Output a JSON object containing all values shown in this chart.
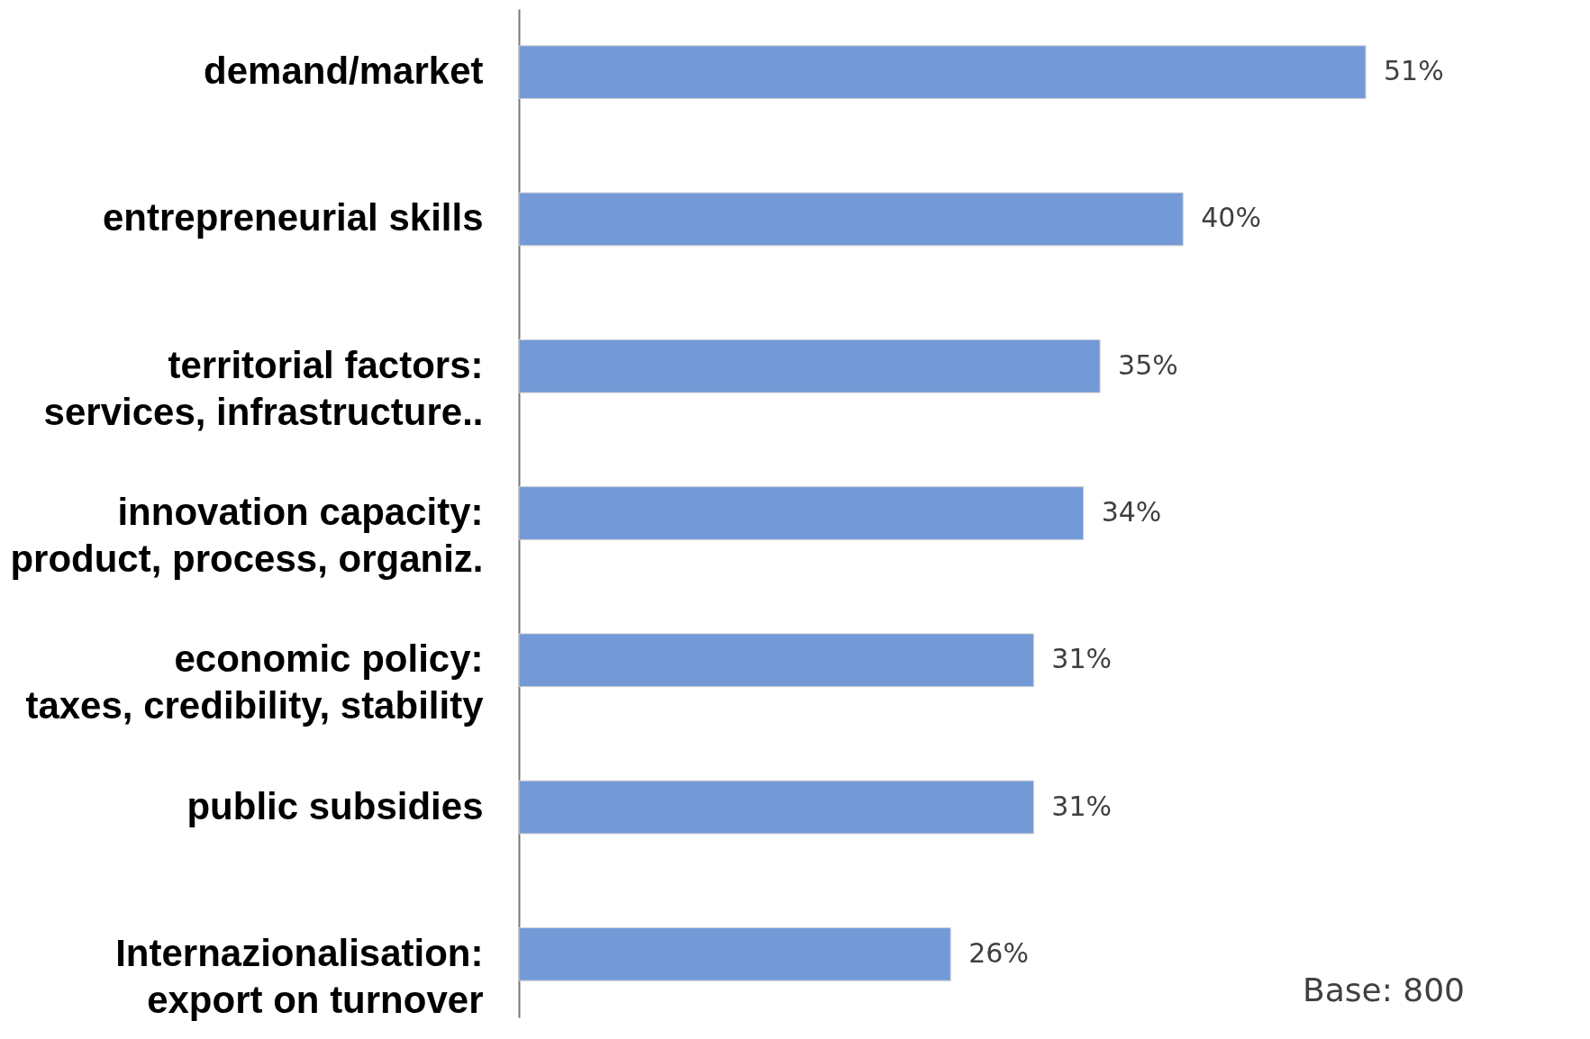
{
  "chart_data": {
    "type": "bar",
    "orientation": "horizontal",
    "categories": [
      "demand/market",
      "entrepreneurial skills",
      "territorial factors:\nservices, infrastructure..",
      "innovation capacity:\nproduct, process, organiz.",
      "economic policy:\ntaxes, credibility, stability",
      "public subsidies",
      "Internazionalisation:\nexport on turnover"
    ],
    "values": [
      51,
      40,
      35,
      34,
      31,
      31,
      26
    ],
    "value_labels": [
      "51%",
      "40%",
      "35%",
      "34%",
      "31%",
      "31%",
      "26%"
    ],
    "color": "#7399d7",
    "tick_labels": "y",
    "annotations": [
      "Base: 800"
    ]
  }
}
